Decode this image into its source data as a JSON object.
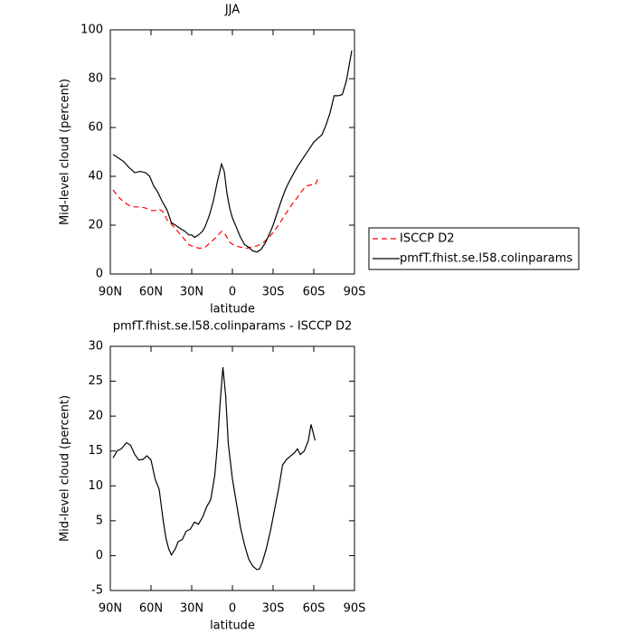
{
  "chart_data": [
    {
      "type": "line",
      "title": "JJA",
      "x_label": "latitude",
      "y_label": "Mid-level cloud (percent)",
      "xlim": [
        90,
        -90
      ],
      "ylim": [
        0,
        100
      ],
      "xticks": [
        {
          "value": 90,
          "label": "90N"
        },
        {
          "value": 60,
          "label": "60N"
        },
        {
          "value": 30,
          "label": "30N"
        },
        0,
        {
          "value": -30,
          "label": "30S"
        },
        {
          "value": -60,
          "label": "60S"
        },
        {
          "value": -90,
          "label": "90S"
        }
      ],
      "yticks": [
        0,
        20,
        40,
        60,
        80,
        100
      ],
      "legend": "right",
      "series": [
        {
          "name": "ISCCP D2",
          "color": "#ff0000",
          "dash": true,
          "x": [
            88,
            84,
            80,
            76,
            72,
            68,
            64,
            60,
            57,
            54,
            51,
            48,
            45,
            42,
            38,
            35,
            32,
            28,
            24,
            20,
            16,
            12,
            8,
            5,
            2,
            -2,
            -6,
            -10,
            -14,
            -18,
            -22,
            -26,
            -30,
            -34,
            -38,
            -42,
            -46,
            -50,
            -54,
            -58,
            -61,
            -64
          ],
          "values": [
            34.5,
            31.5,
            29.5,
            28,
            27.5,
            27.5,
            27,
            26,
            26,
            26.5,
            25.5,
            22,
            20.5,
            18.5,
            16,
            14,
            12,
            11,
            10.5,
            11,
            13,
            15,
            17.5,
            16,
            13,
            11.5,
            11,
            10.5,
            11,
            11.5,
            12.5,
            14.5,
            17,
            20,
            23.5,
            27,
            30,
            33,
            36,
            36.5,
            36.5,
            40
          ]
        },
        {
          "name": "pmfT.fhist.se.l58.colinparams",
          "color": "#000000",
          "dash": false,
          "x": [
            88,
            84,
            80,
            76,
            72,
            68,
            64,
            61,
            58,
            55,
            52,
            48,
            45,
            42,
            38,
            35,
            32,
            30,
            28,
            25,
            22,
            20,
            17,
            14,
            11,
            8,
            6,
            4,
            2,
            0,
            -3,
            -6,
            -9,
            -12,
            -15,
            -18,
            -21,
            -24,
            -27,
            -30,
            -33,
            -36,
            -39,
            -42,
            -45,
            -48,
            -51,
            -54,
            -57,
            -60,
            -63,
            -66,
            -69,
            -72,
            -75,
            -78,
            -81,
            -84,
            -88
          ],
          "values": [
            49,
            47.5,
            46,
            43.5,
            41.5,
            42,
            41.5,
            40,
            36,
            33.5,
            30,
            26,
            21,
            20,
            18.5,
            17.5,
            16,
            16,
            15,
            16,
            17.5,
            19.5,
            24,
            30,
            38,
            45,
            42,
            33,
            27,
            23,
            19,
            15,
            12,
            11,
            9.5,
            9,
            10,
            12.5,
            16,
            20,
            25,
            30,
            34.5,
            38,
            41,
            44,
            46.5,
            49,
            51.5,
            54,
            55.5,
            57,
            61,
            66,
            73,
            73,
            73.5,
            79,
            91.5
          ]
        }
      ]
    },
    {
      "type": "line",
      "title": "pmfT.fhist.se.l58.colinparams - ISCCP D2",
      "x_label": "latitude",
      "y_label": "Mid-level cloud (percent)",
      "xlim": [
        90,
        -90
      ],
      "ylim": [
        -5,
        30
      ],
      "xticks": [
        {
          "value": 90,
          "label": "90N"
        },
        {
          "value": 60,
          "label": "60N"
        },
        {
          "value": 30,
          "label": "30N"
        },
        0,
        {
          "value": -30,
          "label": "30S"
        },
        {
          "value": -60,
          "label": "60S"
        },
        {
          "value": -90,
          "label": "90S"
        }
      ],
      "yticks": [
        -5,
        0,
        5,
        10,
        15,
        20,
        25,
        30
      ],
      "color": "#000000",
      "x": [
        88,
        85,
        82,
        78,
        75,
        72,
        69,
        66,
        63,
        60,
        57,
        54,
        51,
        49,
        47,
        45,
        42,
        40,
        37,
        34,
        31,
        28,
        25,
        22,
        19,
        16,
        13,
        11,
        9,
        8,
        7,
        5,
        3,
        0,
        -3,
        -6,
        -9,
        -12,
        -15,
        -18,
        -20,
        -22,
        -25,
        -28,
        -31,
        -34,
        -37,
        -40,
        -43,
        -46,
        -48,
        -50,
        -53,
        -56,
        -58,
        -61
      ],
      "values": [
        14,
        15,
        15.3,
        16.2,
        15.8,
        14.5,
        13.7,
        13.8,
        14.3,
        13.7,
        11,
        9.5,
        5,
        2.5,
        1,
        0.1,
        1,
        2,
        2.3,
        3.5,
        3.8,
        4.8,
        4.5,
        5.5,
        7,
        8,
        11.5,
        16,
        22,
        24.5,
        27,
        23,
        16,
        11,
        7.5,
        4,
        1.5,
        -0.5,
        -1.5,
        -2,
        -1.9,
        -1,
        1,
        3.5,
        6.5,
        9.5,
        13,
        13.8,
        14.3,
        14.8,
        15.3,
        14.5,
        15,
        16.5,
        18.8,
        16.5
      ]
    }
  ]
}
